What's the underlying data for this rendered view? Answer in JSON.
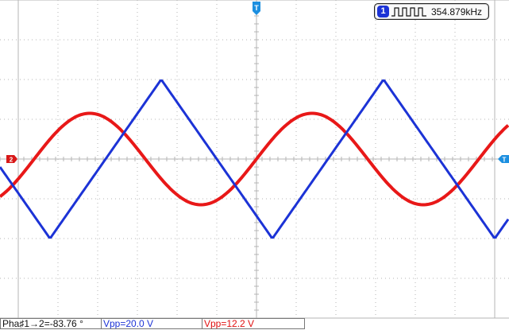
{
  "markers": {
    "trigger_pos": "T",
    "trigger_level": "T",
    "ch2_ref": "2"
  },
  "frequency": {
    "channel": "1",
    "icon": "square-wave-icon",
    "value": "354.879kHz"
  },
  "measurements": {
    "phase": "Pha♯1→2=-83.76 °",
    "ch1_vpp": "Vpp=20.0 V",
    "ch2_vpp": "Vpp=12.2 V"
  },
  "colors": {
    "ch1": "#1c33d6",
    "ch2": "#e81818",
    "marker_blue": "#1c8fe0",
    "marker_red": "#d81818",
    "grid": "#b4b4b4",
    "background": "#ffffff"
  },
  "waveforms": {
    "grid_divisions": {
      "horizontal": 12,
      "vertical": 8
    },
    "ch1": {
      "shape": "triangle",
      "period_div": 5.6,
      "amplitude_div": 2.0,
      "offset_div": 0.0,
      "peak_div": 3.6
    },
    "ch2": {
      "shape": "sine",
      "period_div": 5.6,
      "amplitude_div": 1.15,
      "offset_div": 0.0,
      "peak_div": 1.8
    }
  }
}
